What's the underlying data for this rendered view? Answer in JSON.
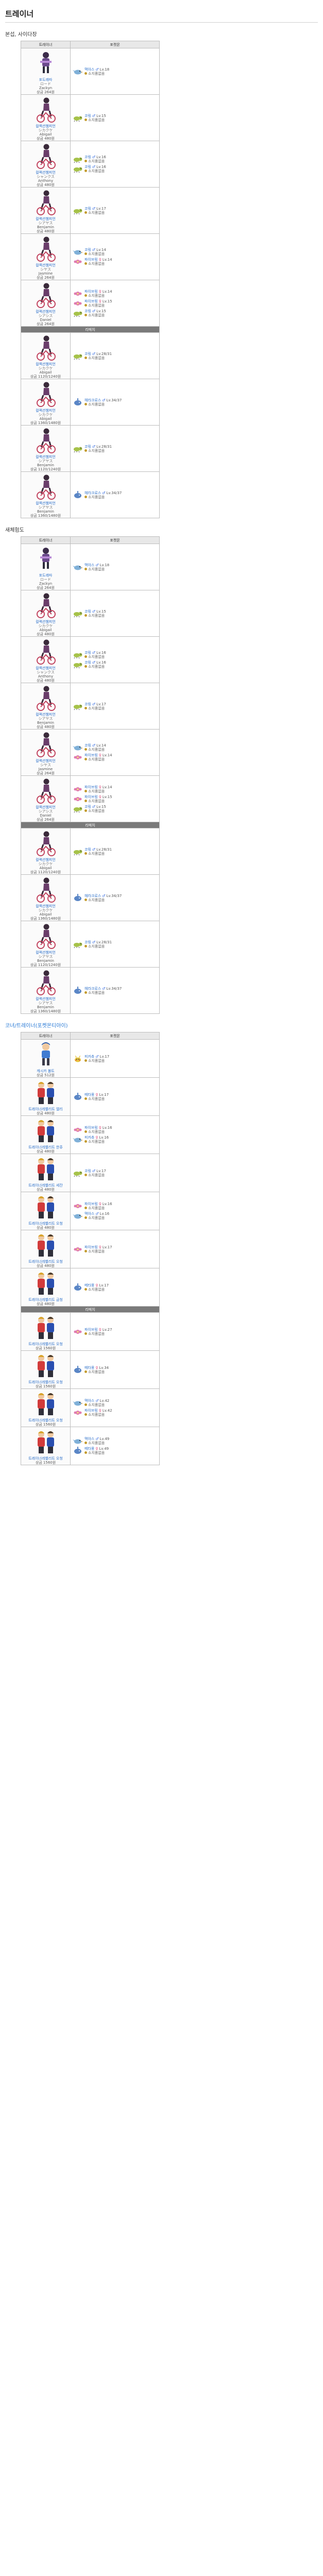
{
  "page": {
    "title": "트레이너"
  },
  "sections": [
    {
      "title": "본섭, 사이다장",
      "link": false,
      "header": {
        "trainer": "트레이너",
        "team": "포켓몬"
      },
      "trainers": [
        {
          "portrait": "rider",
          "name": "포도레따",
          "kana": "ロード",
          "sub": "Zackyn",
          "prize": "상금 264원",
          "mons": [
            {
              "sprite": "bird",
              "color": "#7fb0d8",
              "name": "맥아스",
              "gender": "♂",
              "lv": "Lv.18",
              "item": "소지품없음"
            }
          ]
        },
        {
          "portrait": "cyclist",
          "name": "컬렉션챔피언",
          "kana": "シカクケ",
          "sub": "Abigail",
          "prize": "상금 480원",
          "mons": [
            {
              "sprite": "bug",
              "color": "#a6c24a",
              "name": "코링",
              "gender": "♂",
              "lv": "Lv.15",
              "item": "소지품없음"
            }
          ]
        },
        {
          "portrait": "cyclist",
          "name": "컬렉션챔피언",
          "kana": "シャンクス",
          "sub": "Anthony",
          "prize": "상금 480원",
          "mons": [
            {
              "sprite": "bug",
              "color": "#a6c24a",
              "name": "코링",
              "gender": "♂",
              "lv": "Lv.16",
              "item": "소지품없음"
            },
            {
              "sprite": "bug",
              "color": "#a6c24a",
              "name": "코링",
              "gender": "♂",
              "lv": "Lv.16",
              "item": "소지품없음"
            }
          ]
        },
        {
          "portrait": "cyclist",
          "name": "컬렉션챔피언",
          "kana": "シアヤス",
          "sub": "Benjamin",
          "prize": "상금 480원",
          "mons": [
            {
              "sprite": "bug",
              "color": "#a6c24a",
              "name": "코링",
              "gender": "♂",
              "lv": "Lv.17",
              "item": "소지품없음"
            }
          ]
        },
        {
          "portrait": "cyclist",
          "name": "컬렉션챔피언",
          "kana": "シヤス",
          "sub": "Jasmine",
          "prize": "상금 264원",
          "mons": [
            {
              "sprite": "bird",
              "color": "#7fb0d8",
              "name": "코링",
              "gender": "♂",
              "lv": "Lv.14",
              "item": "소지품없음"
            },
            {
              "sprite": "flower",
              "color": "#e07ab0",
              "name": "파이브링",
              "gender": "♀",
              "lv": "Lv.14",
              "item": "소지품없음"
            }
          ]
        },
        {
          "portrait": "cyclist",
          "name": "컬렉션챔피언",
          "kana": "シアシス",
          "sub": "Daniel",
          "prize": "상금 264원",
          "mons": [
            {
              "sprite": "flower",
              "color": "#e07ab0",
              "name": "파이브링",
              "gender": "♀",
              "lv": "Lv.14",
              "item": "소지품없음"
            },
            {
              "sprite": "flower",
              "color": "#e07ab0",
              "name": "파이브링",
              "gender": "♀",
              "lv": "Lv.15",
              "item": "소지품없음"
            },
            {
              "sprite": "bug",
              "color": "#a6c24a",
              "name": "코링",
              "gender": "♂",
              "lv": "Lv.15",
              "item": "소지품없음"
            }
          ]
        }
      ],
      "rematch_label": "리매치",
      "rematch": [
        {
          "portrait": "cyclist",
          "name": "컬렉션챔피언",
          "kana": "シカクケ",
          "sub": "Abigail",
          "prize": "상금 1120/1240원",
          "mons": [
            {
              "sprite": "bug",
              "color": "#a6c24a",
              "name": "코링",
              "gender": "♂",
              "lv": "Lv.28/31",
              "item": "소지품없음"
            }
          ]
        },
        {
          "portrait": "cyclist",
          "name": "컬렉션챔피언",
          "kana": "シカクケ",
          "sub": "Abigail",
          "prize": "상금 1360/1480원",
          "mons": [
            {
              "sprite": "beetle",
              "color": "#5a86c6",
              "name": "헤라크로스",
              "gender": "♂",
              "lv": "Lv.34/37",
              "item": "소지품없음"
            }
          ]
        },
        {
          "portrait": "cyclist",
          "name": "컬렉션챔피언",
          "kana": "シアヤス",
          "sub": "Benjamin",
          "prize": "상금 1120/1240원",
          "mons": [
            {
              "sprite": "bug",
              "color": "#a6c24a",
              "name": "코링",
              "gender": "♂",
              "lv": "Lv.28/31",
              "item": "소지품없음"
            }
          ]
        },
        {
          "portrait": "cyclist",
          "name": "컬렉션챔피언",
          "kana": "シアヤス",
          "sub": "Benjamin",
          "prize": "상금 1360/1480원",
          "mons": [
            {
              "sprite": "beetle",
              "color": "#5a86c6",
              "name": "헤라크로스",
              "gender": "♂",
              "lv": "Lv.34/37",
              "item": "소지품없음"
            }
          ]
        }
      ]
    },
    {
      "title": "새체험도",
      "link": false,
      "header": {
        "trainer": "트레이너",
        "team": "포켓몬"
      },
      "trainers": [
        {
          "portrait": "rider",
          "name": "포도레따",
          "kana": "ロード",
          "sub": "Zackyn",
          "prize": "상금 264원",
          "mons": [
            {
              "sprite": "bird",
              "color": "#7fb0d8",
              "name": "맥아스",
              "gender": "♂",
              "lv": "Lv.18",
              "item": "소지품없음"
            }
          ]
        },
        {
          "portrait": "cyclist",
          "name": "컬렉션챔피언",
          "kana": "シカクケ",
          "sub": "Abigail",
          "prize": "상금 480원",
          "mons": [
            {
              "sprite": "bug",
              "color": "#a6c24a",
              "name": "코링",
              "gender": "♂",
              "lv": "Lv.15",
              "item": "소지품없음"
            }
          ]
        },
        {
          "portrait": "cyclist",
          "name": "컬렉션챔피언",
          "kana": "シャンクス",
          "sub": "Anthony",
          "prize": "상금 480원",
          "mons": [
            {
              "sprite": "bug",
              "color": "#a6c24a",
              "name": "코링",
              "gender": "♂",
              "lv": "Lv.16",
              "item": "소지품없음"
            },
            {
              "sprite": "bug",
              "color": "#a6c24a",
              "name": "코링",
              "gender": "♂",
              "lv": "Lv.16",
              "item": "소지품없음"
            }
          ]
        },
        {
          "portrait": "cyclist",
          "name": "컬렉션챔피언",
          "kana": "シアヤス",
          "sub": "Benjamin",
          "prize": "상금 480원",
          "mons": [
            {
              "sprite": "bug",
              "color": "#a6c24a",
              "name": "코링",
              "gender": "♂",
              "lv": "Lv.17",
              "item": "소지품없음"
            }
          ]
        },
        {
          "portrait": "cyclist",
          "name": "컬렉션챔피언",
          "kana": "シヤス",
          "sub": "Jasmine",
          "prize": "상금 264원",
          "mons": [
            {
              "sprite": "bird",
              "color": "#7fb0d8",
              "name": "코링",
              "gender": "♂",
              "lv": "Lv.14",
              "item": "소지품없음"
            },
            {
              "sprite": "flower",
              "color": "#e07ab0",
              "name": "파이브링",
              "gender": "♀",
              "lv": "Lv.14",
              "item": "소지품없음"
            }
          ]
        },
        {
          "portrait": "cyclist",
          "name": "컬렉션챔피언",
          "kana": "シアシス",
          "sub": "Daniel",
          "prize": "상금 264원",
          "mons": [
            {
              "sprite": "flower",
              "color": "#e07ab0",
              "name": "파이브링",
              "gender": "♀",
              "lv": "Lv.14",
              "item": "소지품없음"
            },
            {
              "sprite": "flower",
              "color": "#e07ab0",
              "name": "파이브링",
              "gender": "♀",
              "lv": "Lv.15",
              "item": "소지품없음"
            },
            {
              "sprite": "bug",
              "color": "#a6c24a",
              "name": "코링",
              "gender": "♂",
              "lv": "Lv.15",
              "item": "소지품없음"
            }
          ]
        }
      ],
      "rematch_label": "리매치",
      "rematch": [
        {
          "portrait": "cyclist",
          "name": "컬렉션챔피언",
          "kana": "シカクケ",
          "sub": "Abigail",
          "prize": "상금 1120/1240원",
          "mons": [
            {
              "sprite": "bug",
              "color": "#a6c24a",
              "name": "코링",
              "gender": "♂",
              "lv": "Lv.28/31",
              "item": "소지품없음"
            }
          ]
        },
        {
          "portrait": "cyclist",
          "name": "컬렉션챔피언",
          "kana": "シカクケ",
          "sub": "Abigail",
          "prize": "상금 1360/1480원",
          "mons": [
            {
              "sprite": "beetle",
              "color": "#5a86c6",
              "name": "헤라크로스",
              "gender": "♂",
              "lv": "Lv.34/37",
              "item": "소지품없음"
            }
          ]
        },
        {
          "portrait": "cyclist",
          "name": "컬렉션챔피언",
          "kana": "シアヤス",
          "sub": "Benjamin",
          "prize": "상금 1120/1240원",
          "mons": [
            {
              "sprite": "bug",
              "color": "#a6c24a",
              "name": "코링",
              "gender": "♂",
              "lv": "Lv.28/31",
              "item": "소지품없음"
            }
          ]
        },
        {
          "portrait": "cyclist",
          "name": "컬렉션챔피언",
          "kana": "シアヤス",
          "sub": "Benjamin",
          "prize": "상금 1360/1480원",
          "mons": [
            {
              "sprite": "beetle",
              "color": "#5a86c6",
              "name": "헤라크로스",
              "gender": "♂",
              "lv": "Lv.34/37",
              "item": "소지품없음"
            }
          ]
        }
      ]
    },
    {
      "title": "코녀/트레이너(포켓몬티아이)",
      "link": true,
      "header": {
        "trainer": "트레이너",
        "team": "포켓몬"
      },
      "trainers": [
        {
          "portrait": "boy",
          "name": "캐시카 볼트",
          "kana": "",
          "sub": "",
          "prize": "상금 512원",
          "mons": [
            {
              "sprite": "rat",
              "color": "#e6c33c",
              "name": "피카츄",
              "gender": "♂",
              "lv": "Lv.17",
              "item": "소지품없음"
            }
          ]
        },
        {
          "portrait": "trio",
          "name": "트레이너레벨리트 엘리",
          "kana": "",
          "sub": "",
          "prize": "상금 480원",
          "mons": [
            {
              "sprite": "beetle",
              "color": "#5a86c6",
              "name": "메타몽",
              "gender": "♀",
              "lv": "Lv.17",
              "item": "소지품없음"
            }
          ]
        },
        {
          "portrait": "trio",
          "name": "트레이너레벨리트 한쥬",
          "kana": "",
          "sub": "",
          "prize": "상금 480원",
          "mons": [
            {
              "sprite": "flower",
              "color": "#e07ab0",
              "name": "파이브링",
              "gender": "♀",
              "lv": "Lv.16",
              "item": "소지품없음"
            },
            {
              "sprite": "bird",
              "color": "#7fb0d8",
              "name": "피카츄",
              "gender": "♀",
              "lv": "Lv.16",
              "item": "소지품없음"
            }
          ]
        },
        {
          "portrait": "trio",
          "name": "트레이너레벨리트 세잔",
          "kana": "",
          "sub": "",
          "prize": "상금 480원",
          "mons": [
            {
              "sprite": "bug",
              "color": "#a6c24a",
              "name": "코링",
              "gender": "♂",
              "lv": "Lv.17",
              "item": "소지품없음"
            }
          ]
        },
        {
          "portrait": "trio",
          "name": "트레이너레벨리트 오청",
          "kana": "",
          "sub": "",
          "prize": "상금 480원",
          "mons": [
            {
              "sprite": "flower",
              "color": "#e07ab0",
              "name": "파이브링",
              "gender": "♀",
              "lv": "Lv.16",
              "item": "소지품없음"
            },
            {
              "sprite": "bird",
              "color": "#7fb0d8",
              "name": "맥아스",
              "gender": "♂",
              "lv": "Lv.16",
              "item": "소지품없음"
            }
          ]
        },
        {
          "portrait": "trio",
          "name": "트레이너레벨리트 오청",
          "kana": "",
          "sub": "",
          "prize": "상금 480원",
          "mons": [
            {
              "sprite": "flower",
              "color": "#e07ab0",
              "name": "파이브링",
              "gender": "♀",
              "lv": "Lv.17",
              "item": "소지품없음"
            }
          ]
        },
        {
          "portrait": "trio",
          "name": "트레이너레벨리트 금청",
          "kana": "",
          "sub": "",
          "prize": "상금 480원",
          "mons": [
            {
              "sprite": "beetle",
              "color": "#5a86c6",
              "name": "메타몽",
              "gender": "♀",
              "lv": "Lv.17",
              "item": "소지품없음"
            }
          ]
        }
      ],
      "rematch_label": "리매치",
      "rematch": [
        {
          "portrait": "trio",
          "name": "트레이너레벨리트 오청",
          "kana": "",
          "sub": "",
          "prize": "상금 1560원",
          "mons": [
            {
              "sprite": "flower",
              "color": "#e07ab0",
              "name": "파이브링",
              "gender": "♀",
              "lv": "Lv.27",
              "item": "소지품없음"
            }
          ]
        },
        {
          "portrait": "trio",
          "name": "트레이너레벨리트 오청",
          "kana": "",
          "sub": "",
          "prize": "상금 1560원",
          "mons": [
            {
              "sprite": "beetle",
              "color": "#5a86c6",
              "name": "메타몽",
              "gender": "♀",
              "lv": "Lv.34",
              "item": "소지품없음"
            }
          ]
        },
        {
          "portrait": "trio",
          "name": "트레이너레벨리트 오청",
          "kana": "",
          "sub": "",
          "prize": "상금 1560원",
          "mons": [
            {
              "sprite": "bird",
              "color": "#7fb0d8",
              "name": "맥아스",
              "gender": "♂",
              "lv": "Lv.42",
              "item": "소지품없음"
            },
            {
              "sprite": "flower",
              "color": "#e07ab0",
              "name": "파이브링",
              "gender": "♀",
              "lv": "Lv.42",
              "item": "소지품없음"
            }
          ]
        },
        {
          "portrait": "trio",
          "name": "트레이너레벨리트 오청",
          "kana": "",
          "sub": "",
          "prize": "상금 1560원",
          "mons": [
            {
              "sprite": "bird",
              "color": "#7fb0d8",
              "name": "맥아스",
              "gender": "♂",
              "lv": "Lv.49",
              "item": "소지품없음"
            },
            {
              "sprite": "beetle",
              "color": "#5a86c6",
              "name": "메타몽",
              "gender": "♀",
              "lv": "Lv.49",
              "item": "소지품없음"
            }
          ]
        }
      ]
    }
  ]
}
